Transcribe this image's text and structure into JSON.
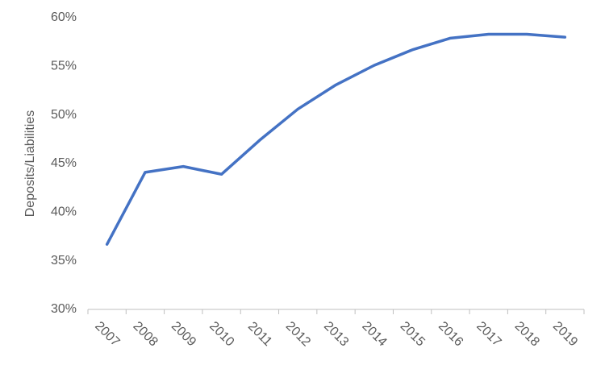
{
  "chart_data": {
    "type": "line",
    "y_label": "Deposits/Liabilities",
    "categories": [
      "2007",
      "2008",
      "2009",
      "2010",
      "2011",
      "2012",
      "2013",
      "2014",
      "2015",
      "2016",
      "2017",
      "2018",
      "2019"
    ],
    "series": [
      {
        "name": "Deposits/Liabilities",
        "color": "#4472c4",
        "values": [
          36.7,
          44.1,
          44.7,
          43.9,
          47.4,
          50.6,
          53.1,
          55.1,
          56.7,
          57.9,
          58.3,
          58.3,
          58.0
        ]
      }
    ],
    "ylim": [
      30,
      60
    ],
    "yticks": [
      {
        "value": 30,
        "label": "30%"
      },
      {
        "value": 35,
        "label": "35%"
      },
      {
        "value": 40,
        "label": "40%"
      },
      {
        "value": 45,
        "label": "45%"
      },
      {
        "value": 50,
        "label": "50%"
      },
      {
        "value": 55,
        "label": "55%"
      },
      {
        "value": 60,
        "label": "60%"
      }
    ],
    "grid": false
  }
}
